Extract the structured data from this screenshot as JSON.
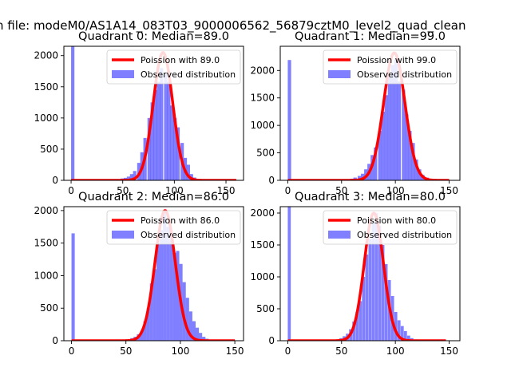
{
  "suptitle": "n file: modeM0/AS1A14_083T03_9000006562_56879cztM0_level2_quad_clean",
  "colors": {
    "poisson": "#ff0000",
    "observed": "#0000ff",
    "axis": "#000000",
    "background": "#ffffff"
  },
  "chart_data": [
    {
      "type": "bar",
      "title": "Quadrant 0: Median=89.0",
      "median": 89.0,
      "xlim": [
        -7,
        167
      ],
      "ylim": [
        0,
        2150
      ],
      "xticks": [
        0,
        50,
        100,
        150
      ],
      "yticks": [
        0,
        500,
        1000,
        1500,
        2000
      ],
      "legend": {
        "position": "top-right",
        "poisson_label": "Poission with 89.0",
        "observed_label": "Observed distribution"
      },
      "observed": {
        "bin_width": 3.2,
        "bins": [
          [
            0,
            2150
          ],
          [
            45,
            10
          ],
          [
            48,
            30
          ],
          [
            51,
            40
          ],
          [
            54,
            60
          ],
          [
            57,
            100
          ],
          [
            60,
            150
          ],
          [
            64,
            280
          ],
          [
            67,
            450
          ],
          [
            70,
            680
          ],
          [
            74,
            1000
          ],
          [
            77,
            1250
          ],
          [
            80,
            1450
          ],
          [
            83,
            1580
          ],
          [
            86,
            1800
          ],
          [
            90,
            1700
          ],
          [
            93,
            1580
          ],
          [
            96,
            1200
          ],
          [
            99,
            1000
          ],
          [
            102,
            850
          ],
          [
            106,
            600
          ],
          [
            109,
            360
          ],
          [
            112,
            250
          ],
          [
            115,
            100
          ],
          [
            118,
            45
          ],
          [
            122,
            20
          ],
          [
            125,
            15
          ],
          [
            128,
            8
          ]
        ]
      },
      "poisson": {
        "mean": 89.0,
        "peak": 2050,
        "x_range": [
          0,
          160
        ]
      }
    },
    {
      "type": "bar",
      "title": "Quadrant 1: Median=99.0",
      "median": 99.0,
      "xlim": [
        -7,
        160
      ],
      "ylim": [
        0,
        2440
      ],
      "xticks": [
        0,
        50,
        100,
        150
      ],
      "yticks": [
        0,
        500,
        1000,
        1500,
        2000
      ],
      "legend": {
        "position": "top-right",
        "poisson_label": "Poission with 99.0",
        "observed_label": "Observed distribution"
      },
      "observed": {
        "bin_width": 3.1,
        "bins": [
          [
            0,
            2190
          ],
          [
            55,
            10
          ],
          [
            58,
            30
          ],
          [
            61,
            50
          ],
          [
            65,
            80
          ],
          [
            68,
            120
          ],
          [
            71,
            200
          ],
          [
            74,
            300
          ],
          [
            77,
            460
          ],
          [
            80,
            600
          ],
          [
            84,
            900
          ],
          [
            87,
            1250
          ],
          [
            90,
            1550
          ],
          [
            93,
            1900
          ],
          [
            96,
            2100
          ],
          [
            99,
            2200
          ],
          [
            102,
            1800
          ],
          [
            106,
            1650
          ],
          [
            109,
            1200
          ],
          [
            112,
            900
          ],
          [
            115,
            680
          ],
          [
            118,
            380
          ],
          [
            121,
            200
          ],
          [
            124,
            100
          ],
          [
            128,
            50
          ],
          [
            131,
            20
          ],
          [
            134,
            10
          ]
        ]
      },
      "poisson": {
        "mean": 99.0,
        "peak": 2320,
        "x_range": [
          0,
          150
        ]
      }
    },
    {
      "type": "bar",
      "title": "Quadrant 2: Median=86.0",
      "median": 86.0,
      "xlim": [
        -7,
        158
      ],
      "ylim": [
        0,
        2060
      ],
      "xticks": [
        0,
        50,
        100,
        150
      ],
      "yticks": [
        0,
        500,
        1000,
        1500,
        2000
      ],
      "legend": {
        "position": "top-right",
        "poisson_label": "Poission with 86.0",
        "observed_label": "Observed distribution"
      },
      "observed": {
        "bin_width": 3.0,
        "bins": [
          [
            0,
            1650
          ],
          [
            48,
            10
          ],
          [
            51,
            20
          ],
          [
            54,
            40
          ],
          [
            57,
            60
          ],
          [
            60,
            100
          ],
          [
            63,
            150
          ],
          [
            66,
            300
          ],
          [
            69,
            500
          ],
          [
            72,
            880
          ],
          [
            75,
            1100
          ],
          [
            78,
            1500
          ],
          [
            81,
            1700
          ],
          [
            84,
            2000
          ],
          [
            87,
            1750
          ],
          [
            90,
            1700
          ],
          [
            93,
            1350
          ],
          [
            96,
            1380
          ],
          [
            99,
            1180
          ],
          [
            102,
            900
          ],
          [
            105,
            660
          ],
          [
            108,
            450
          ],
          [
            111,
            300
          ],
          [
            114,
            200
          ],
          [
            117,
            120
          ],
          [
            120,
            60
          ],
          [
            123,
            30
          ],
          [
            126,
            15
          ]
        ]
      },
      "poisson": {
        "mean": 86.0,
        "peak": 2000,
        "x_range": [
          0,
          150
        ]
      }
    },
    {
      "type": "bar",
      "title": "Quadrant 3: Median=80.0",
      "median": 80.0,
      "xlim": [
        -7,
        160
      ],
      "ylim": [
        0,
        2100
      ],
      "xticks": [
        0,
        50,
        100,
        150
      ],
      "yticks": [
        0,
        500,
        1000,
        1500,
        2000
      ],
      "legend": {
        "position": "top-right",
        "poisson_label": "Poission with 80.0",
        "observed_label": "Observed distribution"
      },
      "observed": {
        "bin_width": 2.8,
        "bins": [
          [
            0,
            2100
          ],
          [
            42,
            10
          ],
          [
            45,
            20
          ],
          [
            48,
            40
          ],
          [
            51,
            70
          ],
          [
            54,
            110
          ],
          [
            57,
            180
          ],
          [
            60,
            300
          ],
          [
            63,
            450
          ],
          [
            66,
            620
          ],
          [
            69,
            1000
          ],
          [
            72,
            1350
          ],
          [
            75,
            1600
          ],
          [
            78,
            1850
          ],
          [
            81,
            2000
          ],
          [
            84,
            1800
          ],
          [
            87,
            1500
          ],
          [
            90,
            1200
          ],
          [
            93,
            950
          ],
          [
            96,
            700
          ],
          [
            99,
            450
          ],
          [
            102,
            320
          ],
          [
            105,
            230
          ],
          [
            108,
            150
          ],
          [
            111,
            80
          ],
          [
            114,
            40
          ],
          [
            117,
            20
          ]
        ]
      },
      "poisson": {
        "mean": 80.0,
        "peak": 2000,
        "x_range": [
          0,
          147
        ]
      }
    }
  ]
}
